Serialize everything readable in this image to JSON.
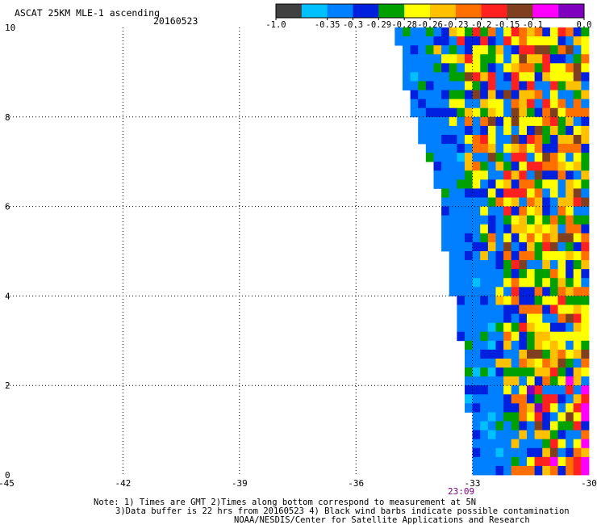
{
  "header": {
    "title": "ASCAT 25KM MLE-1 ascending",
    "date": "20160523"
  },
  "colorbar": {
    "colors": [
      "#404040",
      "#00c0ff",
      "#0080ff",
      "#0020e0",
      "#00a000",
      "#ffff00",
      "#ffc000",
      "#ff7000",
      "#ff2020",
      "#804020",
      "#ff00ff",
      "#8000c0"
    ],
    "labels": [
      "-1.0",
      "-0.35",
      "-0.3",
      "-0.29",
      "-0.28",
      "-0.26",
      "-0.23",
      "-0.2",
      "-0.15",
      "-0.1",
      "0.0"
    ]
  },
  "chart_data": {
    "type": "heatmap",
    "title": "ASCAT 25KM MLE-1 ascending",
    "xlim": [
      -45,
      -30
    ],
    "ylim": [
      0,
      10
    ],
    "x_ticks": [
      "-45",
      "-42",
      "-39",
      "-36",
      "-33",
      "-30"
    ],
    "y_ticks": [
      "0",
      "2",
      "4",
      "6",
      "8",
      "10"
    ],
    "time_label": "23:09",
    "grid": true,
    "swath": {
      "lat_step": 0.2,
      "lon_step": 0.2,
      "west_edge": [
        [
          10.0,
          -34.95
        ],
        [
          9.0,
          -34.8
        ],
        [
          8.0,
          -34.5
        ],
        [
          7.0,
          -34.1
        ],
        [
          6.0,
          -33.8
        ],
        [
          5.0,
          -33.7
        ],
        [
          4.0,
          -33.5
        ],
        [
          3.0,
          -33.3
        ],
        [
          2.0,
          -33.2
        ],
        [
          1.0,
          -33.0
        ],
        [
          0.0,
          -32.9
        ]
      ],
      "east_edge": -30.0,
      "artifact_cells": [
        [
          3.4,
          -33.1
        ],
        [
          3.4,
          -32.9
        ],
        [
          3.2,
          -33.3
        ],
        [
          3.2,
          -33.1
        ],
        [
          3.0,
          -33.3
        ],
        [
          2.8,
          -33.3
        ],
        [
          2.8,
          -33.1
        ],
        [
          2.6,
          -33.1
        ],
        [
          2.6,
          -32.9
        ],
        [
          2.4,
          -32.9
        ],
        [
          2.4,
          -32.7
        ],
        [
          2.2,
          -32.9
        ],
        [
          2.2,
          -32.7
        ],
        [
          2.2,
          -32.5
        ],
        [
          2.0,
          -32.7
        ],
        [
          2.0,
          -32.5
        ],
        [
          1.8,
          -32.5
        ],
        [
          1.8,
          -32.3
        ]
      ]
    }
  },
  "notes": {
    "line1": "Note: 1) Times are GMT 2)Times along bottom correspond to measurement at 5N",
    "line2": "3)Data buffer is 22 hrs from 20160523 4) Black wind barbs indicate possible contamination",
    "line3": "NOAA/NESDIS/Center for Satellite Applications and Research"
  }
}
